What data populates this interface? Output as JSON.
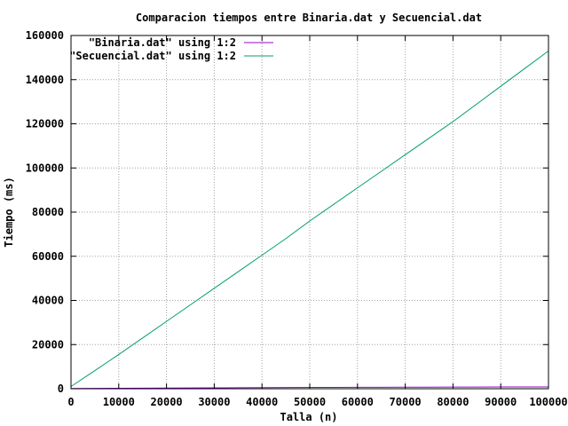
{
  "chart_data": {
    "type": "line",
    "title": "Comparacion tiempos entre Binaria.dat y Secuencial.dat",
    "xlabel": "Talla (n)",
    "ylabel": "Tiempo (ms)",
    "xlim": [
      0,
      100000
    ],
    "ylim": [
      0,
      160000
    ],
    "grid": true,
    "legend_position": "top-left",
    "x_ticks": [
      0,
      10000,
      20000,
      30000,
      40000,
      50000,
      60000,
      70000,
      80000,
      90000,
      100000
    ],
    "y_ticks": [
      0,
      20000,
      40000,
      60000,
      80000,
      100000,
      120000,
      140000,
      160000
    ],
    "x_tick_labels": [
      "0",
      "10000",
      "20000",
      "30000",
      "40000",
      "50000",
      "60000",
      "70000",
      "80000",
      "90000",
      "100000"
    ],
    "y_tick_labels": [
      "0",
      "20000",
      "40000",
      "60000",
      "80000",
      "100000",
      "120000",
      "140000",
      "160000"
    ],
    "x": [
      0,
      5000,
      10000,
      15000,
      20000,
      25000,
      30000,
      35000,
      40000,
      45000,
      50000,
      55000,
      60000,
      65000,
      70000,
      75000,
      80000,
      85000,
      90000,
      95000,
      100000
    ],
    "series": [
      {
        "name": "\"Binaria.dat\" using 1:2",
        "color": "#9400d3",
        "values": [
          100,
          150,
          200,
          250,
          300,
          350,
          400,
          450,
          500,
          550,
          600,
          600,
          650,
          650,
          700,
          700,
          750,
          750,
          800,
          800,
          800
        ]
      },
      {
        "name": "\"Secuencial.dat\" using 1:2",
        "color": "#009e73",
        "values": [
          1000,
          8200,
          15500,
          23000,
          30500,
          38000,
          45500,
          53000,
          60500,
          68000,
          76000,
          83500,
          91000,
          98500,
          106000,
          113500,
          121000,
          129000,
          137000,
          145000,
          153000
        ]
      }
    ]
  }
}
